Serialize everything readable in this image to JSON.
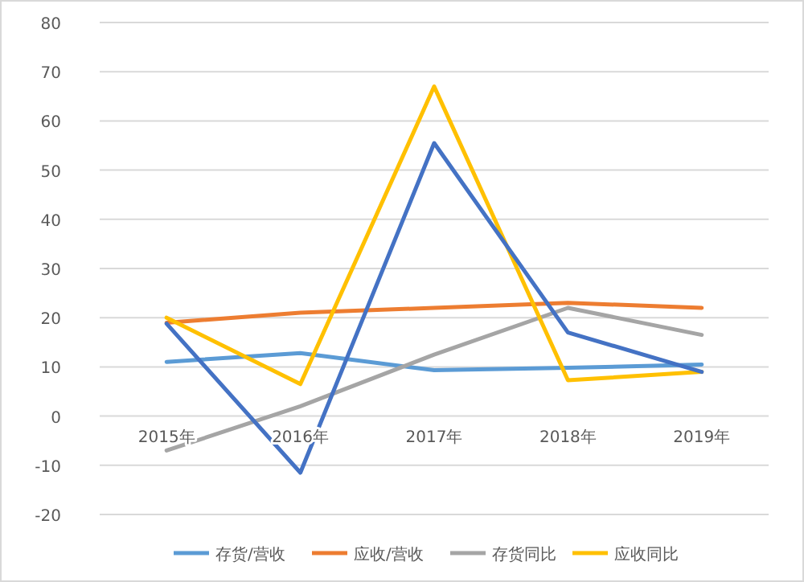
{
  "chart_data": {
    "type": "line",
    "categories": [
      "2015年",
      "2016年",
      "2017年",
      "2018年",
      "2019年"
    ],
    "series": [
      {
        "name": "存货/营收",
        "color": "#5b9bd5",
        "values": [
          11,
          12.8,
          9.3,
          9.8,
          10.5
        ]
      },
      {
        "name": "应收/营收",
        "color": "#ed7d31",
        "values": [
          19,
          21,
          22,
          23,
          22
        ]
      },
      {
        "name": "存货同比",
        "color": "#a5a5a5",
        "values": [
          -7,
          2,
          12.5,
          22,
          16.5
        ]
      },
      {
        "name": "应收同比",
        "color": "#ffc000",
        "values": [
          20,
          6.5,
          67,
          7.3,
          9
        ]
      },
      {
        "color": "#4472c4",
        "values": [
          18.8,
          -11.5,
          55.5,
          17,
          9
        ]
      }
    ],
    "ylim": [
      -20,
      80
    ],
    "yticks": [
      -20,
      -10,
      0,
      10,
      20,
      30,
      40,
      50,
      60,
      70,
      80
    ],
    "grid": "y",
    "legend": "bottom",
    "marker": "none",
    "line_style": "solid"
  }
}
